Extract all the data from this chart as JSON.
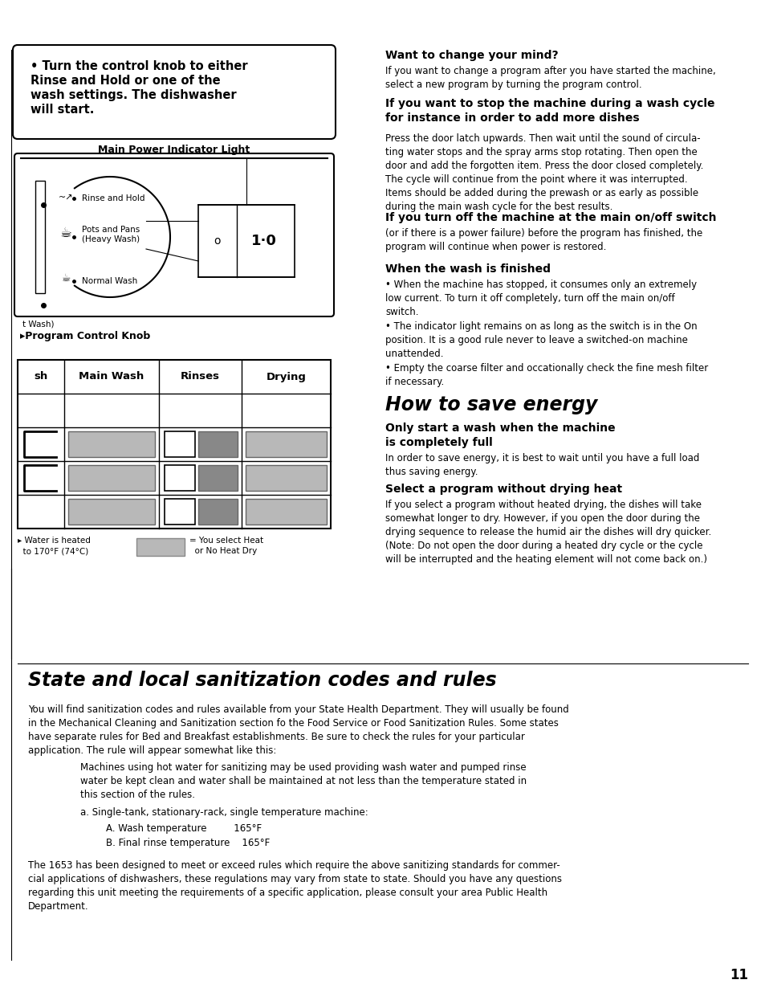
{
  "bg_color": "#ffffff",
  "page_number": "11",
  "gray_light": "#b8b8b8",
  "gray_dark": "#888888",
  "gray_medium": "#a0a0a0",
  "bullet_box_text_line1": "• Turn the control knob to either",
  "bullet_box_text_line2": "Rinse and Hold or one of the",
  "bullet_box_text_line3": "wash settings. The dishwasher",
  "bullet_box_text_line4": "will start.",
  "diagram_title": "Main Power Indicator Light",
  "rinse_hold_label": "Rinse and Hold",
  "pots_pans_label": "Pots and Pans\n(Heavy Wash)",
  "normal_wash_label": "Normal Wash",
  "indicator_o": "o",
  "indicator_10": "1·0",
  "t_wash_label": "t Wash)",
  "program_knob_label": "▸Program Control Knob",
  "table_headers": [
    "sh",
    "Main Wash",
    "Rinses",
    "Drying"
  ],
  "water_note": "▸ Water is heated\n  to 170°F (74°C)",
  "heat_note": "= You select Heat\n  or No Heat Dry",
  "s1_title": "Want to change your mind?",
  "s1_body": "If you want to change a program after you have started the machine,\nselect a new program by turning the program control.",
  "s2_title": "If you want to stop the machine during a wash cycle\nfor instance in order to add more dishes",
  "s2_body": "Press the door latch upwards. Then wait until the sound of circula-\nting water stops and the spray arms stop rotating. Then open the\ndoor and add the forgotten item. Press the door closed completely.\nThe cycle will continue from the point where it was interrupted.\nItems should be added during the prewash or as early as possible\nduring the main wash cycle for the best results.",
  "s3_title": "If you turn off the machine at the main on/off switch",
  "s3_body": "(or if there is a power failure) before the program has finished, the\nprogram will continue when power is restored.",
  "s4_title": "When the wash is finished",
  "s4_b1": "When the machine has stopped, it consumes only an extremely\nlow current. To turn it off completely, turn off the main on/off\nswitch.",
  "s4_b2": "The indicator light remains on as long as the switch is in the On\nposition. It is a good rule never to leave a switched-on machine\nunattended.",
  "s4_b3": "Empty the coarse filter and occationally check the fine mesh filter\nif necessary.",
  "energy_title": "How to save energy",
  "energy_sub1": "Only start a wash when the machine\nis completely full",
  "energy_body1": "In order to save energy, it is best to wait until you have a full load\nthus saving energy.",
  "energy_sub2": "Select a program without drying heat",
  "energy_body2": "If you select a program without heated drying, the dishes will take\nsomewhat longer to dry. However, if you open the door during the\ndrying sequence to release the humid air the dishes will dry quicker.\n(Note: Do not open the door during a heated dry cycle or the cycle\nwill be interrupted and the heating element will not come back on.)",
  "san_title": "State and local sanitization codes and rules",
  "san_body1": "You will find sanitization codes and rules available from your State Health Department. They will usually be found\nin the Mechanical Cleaning and Sanitization section fo the Food Service or Food Sanitization Rules. Some states\nhave separate rules for Bed and Breakfast establishments. Be sure to check the rules for your particular\napplication. The rule will appear somewhat like this:",
  "san_indent1": "Machines using hot water for sanitizing may be used providing wash water and pumped rinse\nwater be kept clean and water shall be maintained at not less than the temperature stated in\nthis section of the rules.",
  "san_indent2": "a. Single-tank, stationary-rack, single temperature machine:",
  "san_indent3a": "A. Wash temperature         165°F",
  "san_indent3b": "B. Final rinse temperature    165°F",
  "san_body2": "The 1653 has been designed to meet or exceed rules which require the above sanitizing standards for commer-\ncial applications of dishwashers, these regulations may vary from state to state. Should you have any questions\nregarding this unit meeting the requirements of a specific application, please consult your area Public Health\nDepartment."
}
